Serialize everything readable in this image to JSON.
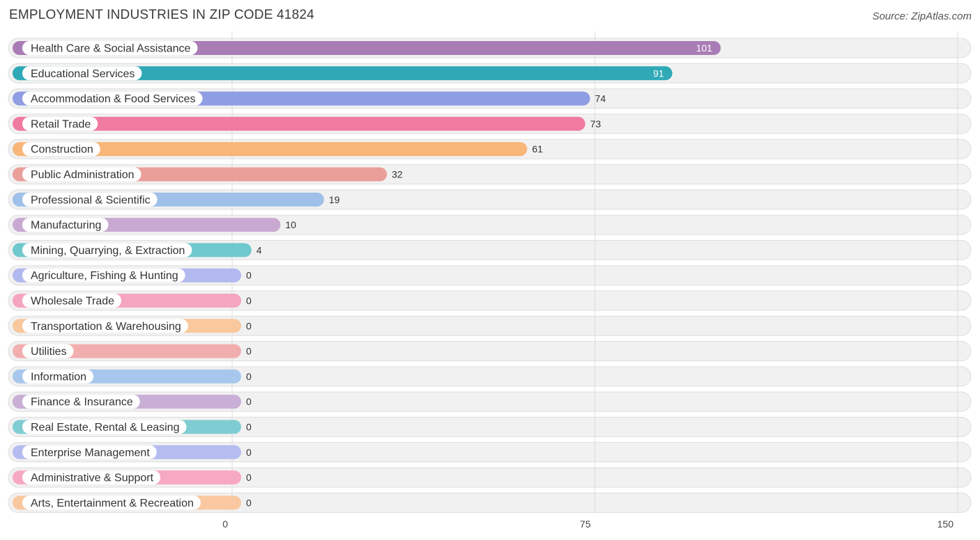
{
  "header": {
    "title": "EMPLOYMENT INDUSTRIES IN ZIP CODE 41824",
    "source": "Source: ZipAtlas.com"
  },
  "chart_data": {
    "type": "bar",
    "orientation": "horizontal",
    "title": "EMPLOYMENT INDUSTRIES IN ZIP CODE 41824",
    "categories": [
      "Health Care & Social Assistance",
      "Educational Services",
      "Accommodation & Food Services",
      "Retail Trade",
      "Construction",
      "Public Administration",
      "Professional & Scientific",
      "Manufacturing",
      "Mining, Quarrying, & Extraction",
      "Agriculture, Fishing & Hunting",
      "Wholesale Trade",
      "Transportation & Warehousing",
      "Utilities",
      "Information",
      "Finance & Insurance",
      "Real Estate, Rental & Leasing",
      "Enterprise Management",
      "Administrative & Support",
      "Arts, Entertainment & Recreation"
    ],
    "values": [
      101,
      91,
      74,
      73,
      61,
      32,
      19,
      10,
      4,
      0,
      0,
      0,
      0,
      0,
      0,
      0,
      0,
      0,
      0
    ],
    "colors": [
      "#a97cb5",
      "#2fa9b6",
      "#8f9de3",
      "#f07ba0",
      "#f8b678",
      "#eb9f9b",
      "#9fc0e8",
      "#c9a9d2",
      "#6fc8cd",
      "#b2b9ee",
      "#f6a5c1",
      "#f9c89d",
      "#f2aeae",
      "#a7c7ec",
      "#c9aed5",
      "#7fcdd2",
      "#b5bcef",
      "#f7a8c3",
      "#f9c8a0"
    ],
    "xlim": [
      0,
      150
    ],
    "xticks": [
      0,
      75,
      150
    ],
    "grid": true
  }
}
